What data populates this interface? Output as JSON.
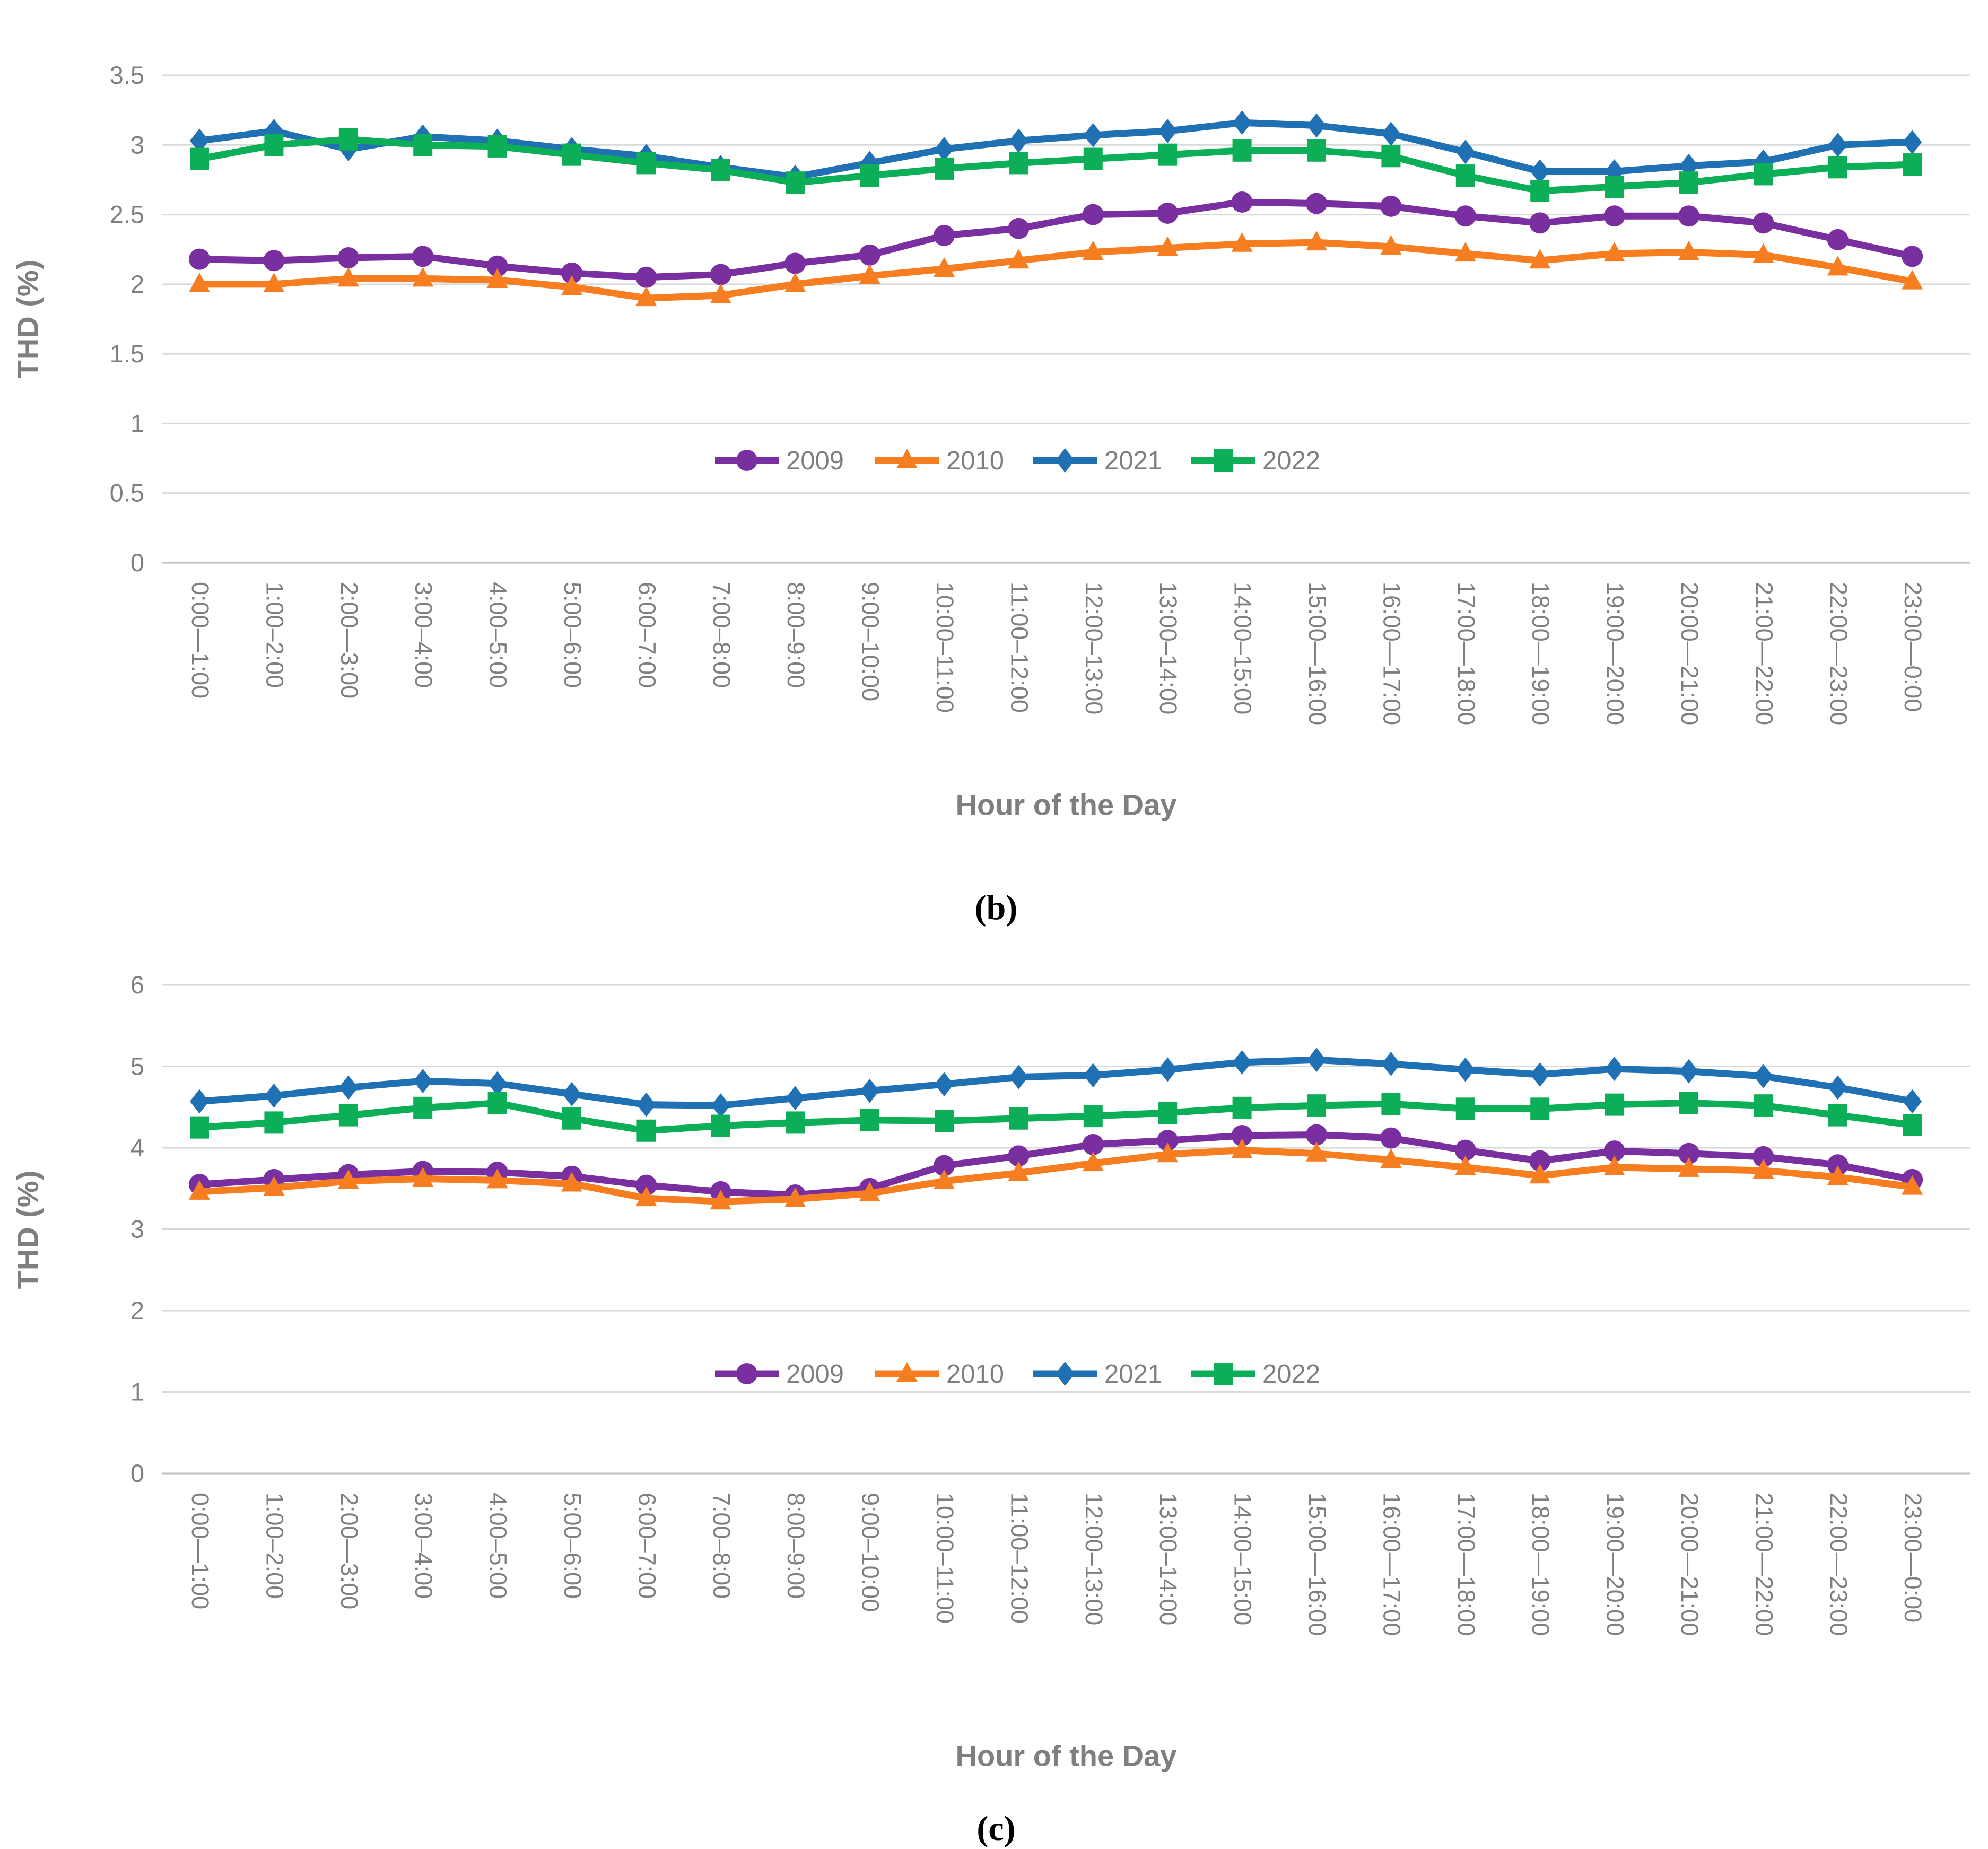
{
  "styles": {
    "background": "#FFFFFF",
    "gridline_color": "#D9D9D9",
    "zero_line_color": "#BFBFBF",
    "text_color": "#7F7F7F",
    "caption_color": "#000000",
    "series_colors": {
      "2009": "#7A2FA0",
      "2010": "#F77E20",
      "2021": "#2070B4",
      "2022": "#0DAE58"
    }
  },
  "legend": [
    "2009",
    "2010",
    "2021",
    "2022"
  ],
  "chart_data": [
    {
      "id": "b",
      "type": "line",
      "caption": "(b)",
      "title": "",
      "xlabel": "Hour of the Day",
      "ylabel": "THD (%)",
      "ylim": [
        0,
        3.5
      ],
      "ytick_labels": [
        "0",
        "0.5",
        "1",
        "1.5",
        "2",
        "2.5",
        "3",
        "3.5"
      ],
      "grid": true,
      "legend_position": "inside-center",
      "categories": [
        "0:00—1:00",
        "1:00–2:00",
        "2:00—3:00",
        "3:00–4:00",
        "4:00–5:00",
        "5:00–6:00",
        "6:00–7:00",
        "7:00–8:00",
        "8:00–9:00",
        "9:00–10:00",
        "10:00–11:00",
        "11:00–12:00",
        "12:00–13:00",
        "13:00–14:00",
        "14:00–15:00",
        "15:00—16:00",
        "16:00—17:00",
        "17:00—18:00",
        "18:00—19:00",
        "19:00—20:00",
        "20:00—21:00",
        "21:00—22:00",
        "22:00—23:00",
        "23:00—0:00"
      ],
      "series": [
        {
          "name": "2009",
          "color": "#7A2FA0",
          "marker": "circle",
          "values": [
            2.18,
            2.17,
            2.19,
            2.2,
            2.13,
            2.08,
            2.05,
            2.07,
            2.15,
            2.21,
            2.35,
            2.4,
            2.5,
            2.51,
            2.59,
            2.58,
            2.56,
            2.49,
            2.44,
            2.49,
            2.49,
            2.44,
            2.32,
            2.2
          ]
        },
        {
          "name": "2010",
          "color": "#F77E20",
          "marker": "triangle",
          "values": [
            2.0,
            2.0,
            2.04,
            2.04,
            2.03,
            1.98,
            1.9,
            1.92,
            2.0,
            2.06,
            2.11,
            2.17,
            2.23,
            2.26,
            2.29,
            2.3,
            2.27,
            2.22,
            2.17,
            2.22,
            2.23,
            2.21,
            2.12,
            2.02
          ]
        },
        {
          "name": "2021",
          "color": "#2070B4",
          "marker": "diamond",
          "values": [
            3.03,
            3.1,
            2.97,
            3.06,
            3.03,
            2.97,
            2.92,
            2.84,
            2.77,
            2.87,
            2.97,
            3.03,
            3.07,
            3.1,
            3.16,
            3.14,
            3.08,
            2.95,
            2.81,
            2.81,
            2.85,
            2.88,
            3.0,
            3.02
          ]
        },
        {
          "name": "2022",
          "color": "#0DAE58",
          "marker": "square",
          "values": [
            2.9,
            3.0,
            3.04,
            3.0,
            2.99,
            2.93,
            2.87,
            2.82,
            2.73,
            2.78,
            2.83,
            2.87,
            2.9,
            2.93,
            2.96,
            2.96,
            2.92,
            2.78,
            2.67,
            2.7,
            2.73,
            2.79,
            2.84,
            2.86
          ]
        }
      ]
    },
    {
      "id": "c",
      "type": "line",
      "caption": "(c)",
      "title": "",
      "xlabel": "Hour of the Day",
      "ylabel": "THD (%)",
      "ylim": [
        0,
        6
      ],
      "ytick_labels": [
        "0",
        "1",
        "2",
        "3",
        "4",
        "5",
        "6"
      ],
      "grid": true,
      "legend_position": "inside-center",
      "categories": [
        "0:00—1:00",
        "1:00–2:00",
        "2:00—3:00",
        "3:00–4:00",
        "4:00–5:00",
        "5:00–6:00",
        "6:00–7:00",
        "7:00–8:00",
        "8:00–9:00",
        "9:00–10:00",
        "10:00–11:00",
        "11:00–12:00",
        "12:00–13:00",
        "13:00–14:00",
        "14:00–15:00",
        "15:00—16:00",
        "16:00—17:00",
        "17:00—18:00",
        "18:00—19:00",
        "19:00—20:00",
        "20:00—21:00",
        "21:00—22:00",
        "22:00—23:00",
        "23:00—0:00"
      ],
      "series": [
        {
          "name": "2009",
          "color": "#7A2FA0",
          "marker": "circle",
          "values": [
            3.55,
            3.61,
            3.67,
            3.71,
            3.7,
            3.65,
            3.54,
            3.46,
            3.42,
            3.5,
            3.78,
            3.9,
            4.04,
            4.09,
            4.15,
            4.16,
            4.12,
            3.97,
            3.84,
            3.96,
            3.93,
            3.89,
            3.79,
            3.61
          ]
        },
        {
          "name": "2010",
          "color": "#F77E20",
          "marker": "triangle",
          "values": [
            3.46,
            3.51,
            3.59,
            3.62,
            3.6,
            3.56,
            3.38,
            3.34,
            3.37,
            3.44,
            3.59,
            3.69,
            3.81,
            3.92,
            3.97,
            3.93,
            3.85,
            3.76,
            3.66,
            3.76,
            3.74,
            3.72,
            3.64,
            3.52
          ]
        },
        {
          "name": "2021",
          "color": "#2070B4",
          "marker": "diamond",
          "values": [
            4.57,
            4.64,
            4.74,
            4.82,
            4.79,
            4.66,
            4.53,
            4.52,
            4.61,
            4.7,
            4.78,
            4.87,
            4.89,
            4.96,
            5.05,
            5.08,
            5.03,
            4.96,
            4.9,
            4.97,
            4.94,
            4.88,
            4.74,
            4.57
          ]
        },
        {
          "name": "2022",
          "color": "#0DAE58",
          "marker": "square",
          "values": [
            4.25,
            4.31,
            4.4,
            4.49,
            4.55,
            4.36,
            4.21,
            4.27,
            4.31,
            4.34,
            4.33,
            4.36,
            4.39,
            4.43,
            4.49,
            4.52,
            4.54,
            4.48,
            4.48,
            4.53,
            4.55,
            4.52,
            4.4,
            4.28
          ]
        }
      ]
    }
  ]
}
